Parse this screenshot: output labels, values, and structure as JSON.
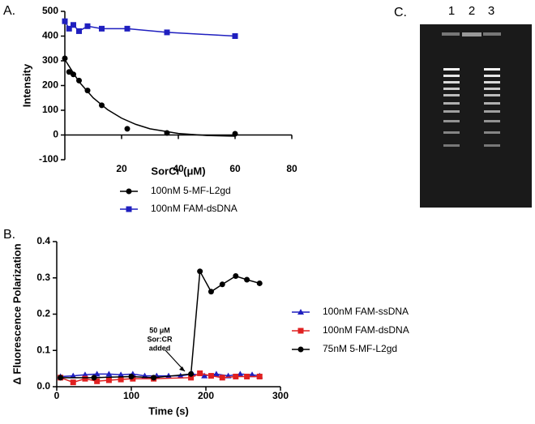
{
  "panels": [
    "A.",
    "B.",
    "C."
  ],
  "gel": {
    "lanes": [
      "1",
      "2",
      "3"
    ]
  },
  "chart_data": [
    {
      "type": "scatter",
      "x_label": "SorCr (μM)",
      "y_label": "Intensity",
      "xlim": [
        0,
        80
      ],
      "xticks": [
        20,
        40,
        60,
        80
      ],
      "ylim": [
        -100,
        500
      ],
      "yticks": [
        -100,
        0,
        100,
        200,
        300,
        400,
        500
      ],
      "series": [
        {
          "name": "100nM 5-MF-L2gd",
          "color": "#000000",
          "marker": "circle",
          "x": [
            0,
            1.5,
            3,
            5,
            8,
            13,
            22,
            36,
            60
          ],
          "values": [
            310,
            255,
            245,
            220,
            180,
            120,
            25,
            8,
            5
          ],
          "fit_x": [
            0,
            5,
            10,
            15,
            20,
            25,
            30,
            40,
            50,
            60
          ],
          "fit_values": [
            305,
            215,
            150,
            103,
            68,
            43,
            25,
            6,
            -2,
            -5
          ]
        },
        {
          "name": "100nM FAM-dsDNA",
          "color": "#1f1fbf",
          "marker": "square",
          "x": [
            0,
            1.5,
            3,
            5,
            8,
            13,
            22,
            36,
            60
          ],
          "values": [
            460,
            430,
            445,
            420,
            440,
            430,
            430,
            415,
            400
          ]
        }
      ]
    },
    {
      "type": "line",
      "x_label": "Time (s)",
      "y_label": "Δ Fluorescence Polarization",
      "xlim": [
        0,
        300
      ],
      "xticks": [
        0,
        100,
        200,
        300
      ],
      "ylim": [
        0,
        0.4
      ],
      "yticks": [
        {
          "value": 0,
          "label": "0.0"
        },
        0.1,
        0.2,
        0.3,
        0.4
      ],
      "annotation": [
        "50 μM",
        "Sor:CR",
        "added"
      ],
      "series": [
        {
          "name": "100nM FAM-ssDNA",
          "color": "#1f1fbf",
          "marker": "triangle",
          "x": [
            5,
            22,
            38,
            54,
            70,
            86,
            102,
            118,
            134,
            150,
            166,
            182,
            198,
            214,
            230,
            246,
            262,
            272
          ],
          "values": [
            0.028,
            0.03,
            0.033,
            0.035,
            0.035,
            0.033,
            0.035,
            0.03,
            0.03,
            0.03,
            0.03,
            0.035,
            0.03,
            0.035,
            0.03,
            0.035,
            0.033,
            0.03
          ]
        },
        {
          "name": "100nM FAM-dsDNA",
          "color": "#e02020",
          "marker": "square",
          "x": [
            5,
            22,
            38,
            54,
            70,
            86,
            102,
            130,
            180,
            192,
            207,
            222,
            240,
            255,
            272
          ],
          "values": [
            0.025,
            0.012,
            0.022,
            0.015,
            0.018,
            0.02,
            0.022,
            0.022,
            0.025,
            0.037,
            0.03,
            0.025,
            0.028,
            0.028,
            0.028
          ]
        },
        {
          "name": "75nM 5-MF-L2gd",
          "color": "#000000",
          "marker": "circle",
          "x": [
            5,
            50,
            100,
            130,
            180,
            192,
            207,
            222,
            240,
            255,
            272
          ],
          "values": [
            0.025,
            0.025,
            0.028,
            0.025,
            0.035,
            0.318,
            0.262,
            0.282,
            0.305,
            0.295,
            0.285
          ]
        }
      ]
    }
  ]
}
